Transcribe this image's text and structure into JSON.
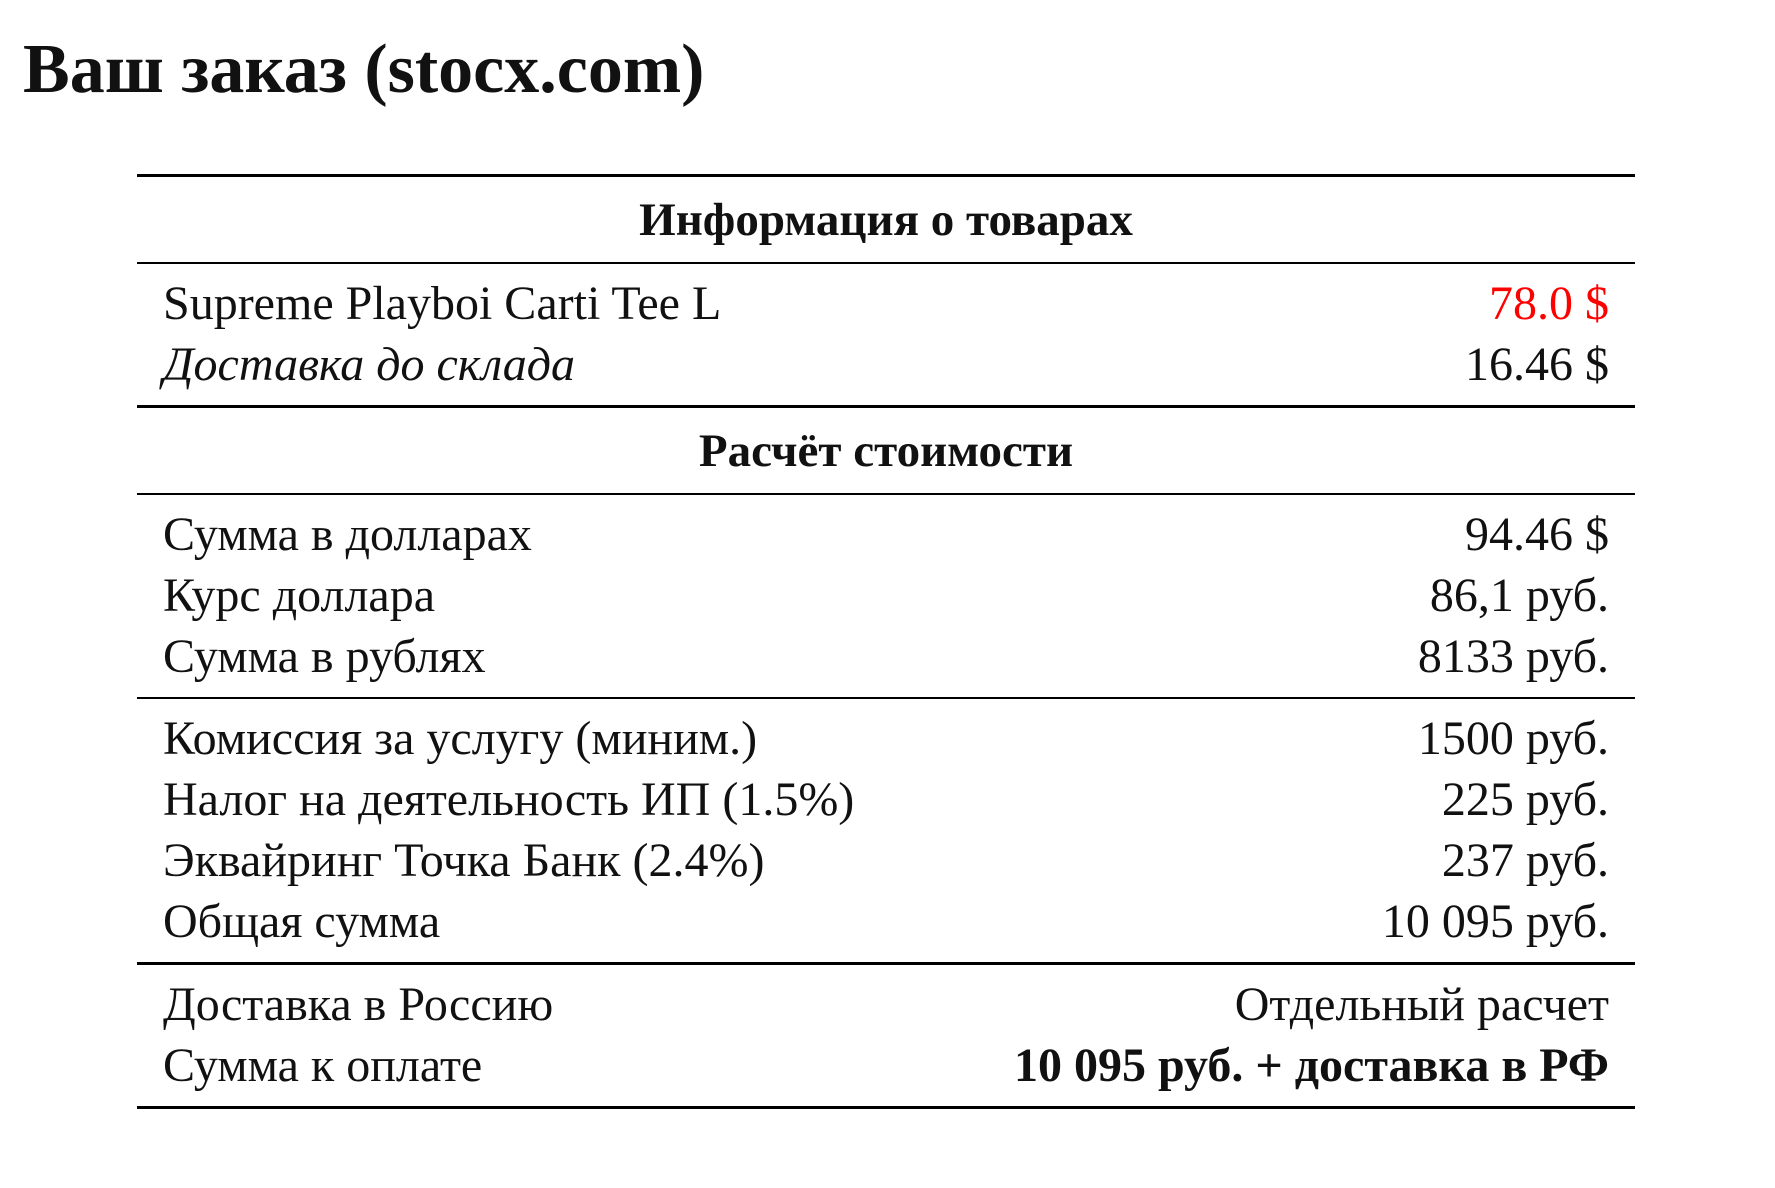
{
  "title": "Ваш заказ (stocx.com)",
  "accent_price_color": "#ff0000",
  "sections": {
    "items_header": "Информация о товарах",
    "items": [
      {
        "label": "Supreme Playboi Carti Tee L",
        "value": "78.0 $"
      },
      {
        "label": "Доставка до склада",
        "value": "16.46 $"
      }
    ],
    "calc_header": "Расчёт стоимости",
    "conversion": [
      {
        "label": "Сумма в долларах",
        "value": "94.46 $"
      },
      {
        "label": "Курс доллара",
        "value": "86,1 руб."
      },
      {
        "label": "Сумма в рублях",
        "value": "8133 руб."
      }
    ],
    "fees": [
      {
        "label": "Комиссия за услугу (миним.)",
        "value": "1500 руб."
      },
      {
        "label": "Налог на деятельность ИП (1.5%)",
        "value": "225 руб."
      },
      {
        "label": "Эквайринг Точка Банк (2.4%)",
        "value": "237 руб."
      },
      {
        "label": "Общая сумма",
        "value": "10 095 руб."
      }
    ],
    "final": [
      {
        "label": "Доставка в Россию",
        "value": "Отдельный расчет"
      },
      {
        "label": "Сумма к оплате",
        "value": "10 095 руб. + доставка в РФ"
      }
    ]
  }
}
